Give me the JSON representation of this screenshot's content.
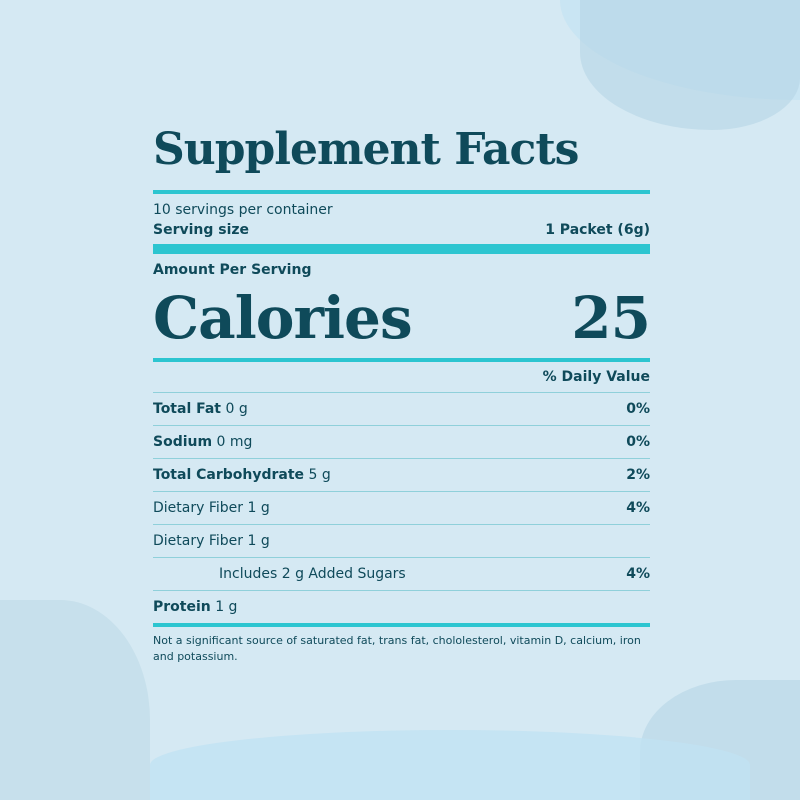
{
  "title": "Supplement Facts",
  "servings_per_container": "10 servings per container",
  "serving_size_label": "Serving size",
  "serving_size_value": "1 Packet (6g)",
  "amount_per_serving": "Amount Per Serving",
  "calories_label": "Calories",
  "calories_value": "25",
  "daily_value_header": "% Daily Value",
  "rows": [
    {
      "name": "Total Fat",
      "amount": "0 g",
      "dv": "0%"
    },
    {
      "name": "Sodium",
      "amount": "0 mg",
      "dv": "0%"
    },
    {
      "name": "Total Carbohydrate",
      "amount": "5 g",
      "dv": "2%"
    },
    {
      "name": "Dietary Fiber 1 g",
      "amount": "",
      "dv": "4%"
    },
    {
      "name": "Dietary Fiber 1 g",
      "amount": "",
      "dv": ""
    },
    {
      "name": "Includes 2 g Added Sugars",
      "amount": "",
      "dv": "4%"
    },
    {
      "name": "Protein",
      "amount": "1 g",
      "dv": ""
    }
  ],
  "footnote": "Not a significant source of saturated fat, trans fat, chololesterol, vitamin D, calcium, iron and potassium.",
  "colors": {
    "background": "#d5e9f3",
    "text": "#0f4a5a",
    "accent": "#2cc5d0"
  }
}
